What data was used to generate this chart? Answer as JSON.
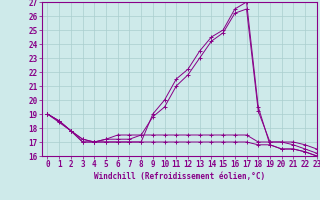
{
  "xlabel": "Windchill (Refroidissement éolien,°C)",
  "background_color": "#ceeaea",
  "grid_color": "#aacece",
  "line_color": "#880088",
  "x_values": [
    0,
    1,
    2,
    3,
    4,
    5,
    6,
    7,
    8,
    9,
    10,
    11,
    12,
    13,
    14,
    15,
    16,
    17,
    18,
    19,
    20,
    21,
    22,
    23
  ],
  "series": [
    [
      19.0,
      18.5,
      17.8,
      17.0,
      17.0,
      17.0,
      17.0,
      17.0,
      17.0,
      19.0,
      20.0,
      21.5,
      22.2,
      23.5,
      24.5,
      25.0,
      26.5,
      27.0,
      19.5,
      16.8,
      16.5,
      16.5,
      16.3,
      16.0
    ],
    [
      19.0,
      18.5,
      17.8,
      17.2,
      17.0,
      17.2,
      17.2,
      17.2,
      17.5,
      18.8,
      19.5,
      21.0,
      21.8,
      23.0,
      24.2,
      24.8,
      26.2,
      26.5,
      19.2,
      17.0,
      17.0,
      16.8,
      16.5,
      16.2
    ],
    [
      19.0,
      18.5,
      17.8,
      17.2,
      17.0,
      17.2,
      17.5,
      17.5,
      17.5,
      17.5,
      17.5,
      17.5,
      17.5,
      17.5,
      17.5,
      17.5,
      17.5,
      17.5,
      17.0,
      17.0,
      17.0,
      17.0,
      16.8,
      16.5
    ],
    [
      19.0,
      18.4,
      17.8,
      17.0,
      17.0,
      17.0,
      17.0,
      17.0,
      17.0,
      17.0,
      17.0,
      17.0,
      17.0,
      17.0,
      17.0,
      17.0,
      17.0,
      17.0,
      16.8,
      16.8,
      16.5,
      16.5,
      16.3,
      16.0
    ]
  ],
  "ylim": [
    16,
    27
  ],
  "xlim": [
    -0.5,
    23
  ],
  "yticks": [
    16,
    17,
    18,
    19,
    20,
    21,
    22,
    23,
    24,
    25,
    26,
    27
  ],
  "xticks": [
    0,
    1,
    2,
    3,
    4,
    5,
    6,
    7,
    8,
    9,
    10,
    11,
    12,
    13,
    14,
    15,
    16,
    17,
    18,
    19,
    20,
    21,
    22,
    23
  ],
  "tick_fontsize": 5.5,
  "xlabel_fontsize": 5.5
}
